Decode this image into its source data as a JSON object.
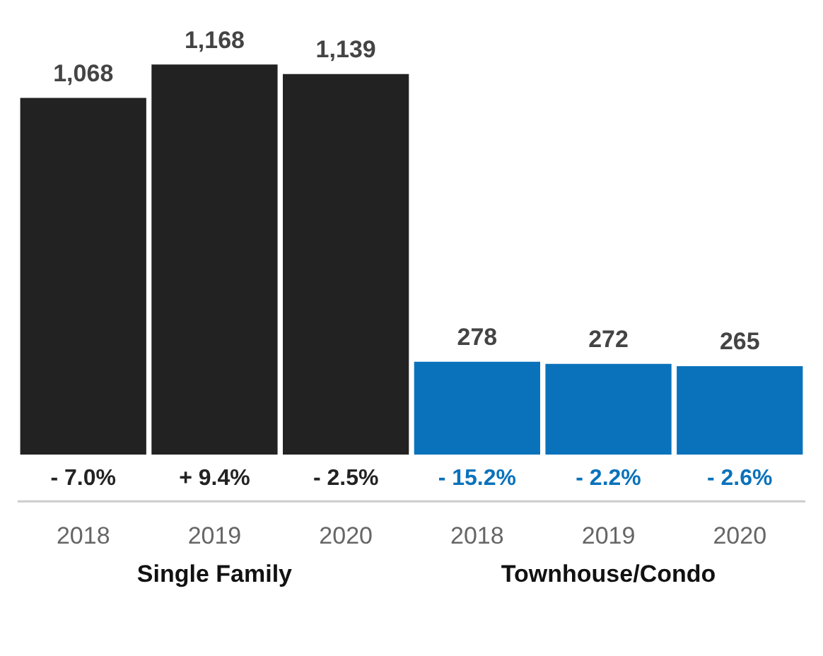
{
  "chart_data": {
    "type": "bar",
    "categories": [
      "2018",
      "2019",
      "2020",
      "2018",
      "2019",
      "2020"
    ],
    "values": [
      1068,
      1168,
      1139,
      278,
      272,
      265
    ],
    "colors": [
      "#222222",
      "#222222",
      "#222222",
      "#0a72bb",
      "#0a72bb",
      "#0a72bb"
    ],
    "value_labels": [
      "1,068",
      "1,168",
      "1,139",
      "278",
      "272",
      "265"
    ],
    "annotations": [
      "- 7.0%",
      "+ 9.4%",
      "- 2.5%",
      "- 15.2%",
      "- 2.2%",
      "- 2.6%",
      "Single Family",
      "Townhouse/Condo"
    ]
  }
}
